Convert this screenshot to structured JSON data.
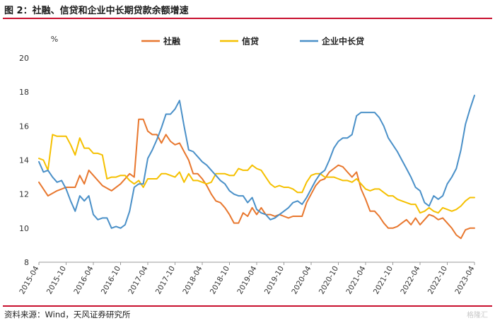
{
  "figure": {
    "title": "图 2：社融、信贷和企业中长期贷款余额增速",
    "source": "资料来源：Wind，天风证券研究所",
    "watermark": "格隆汇"
  },
  "chart_data": {
    "type": "line",
    "unit_label": "%",
    "ylim": [
      8,
      20
    ],
    "yticks": [
      8,
      10,
      12,
      14,
      16,
      18,
      20
    ],
    "x_start": "2015-04",
    "x_end": "2023-04",
    "x_ticks": [
      "2015-04",
      "2015-10",
      "2016-04",
      "2016-10",
      "2017-04",
      "2017-10",
      "2018-04",
      "2018-10",
      "2019-04",
      "2019-10",
      "2020-04",
      "2020-10",
      "2021-04",
      "2021-10",
      "2022-04",
      "2022-10",
      "2023-04"
    ],
    "grid": false,
    "legend_position": "top",
    "series": [
      {
        "name": "社融",
        "color": "#E8772E",
        "points": [
          [
            "2015-04",
            12.7
          ],
          [
            "2015-06",
            11.9
          ],
          [
            "2015-08",
            12.2
          ],
          [
            "2015-10",
            12.4
          ],
          [
            "2015-12",
            12.4
          ],
          [
            "2016-01",
            13.1
          ],
          [
            "2016-02",
            12.6
          ],
          [
            "2016-03",
            13.4
          ],
          [
            "2016-04",
            13.1
          ],
          [
            "2016-06",
            12.5
          ],
          [
            "2016-08",
            12.2
          ],
          [
            "2016-10",
            12.6
          ],
          [
            "2016-12",
            13.2
          ],
          [
            "2017-01",
            13.0
          ],
          [
            "2017-02",
            16.4
          ],
          [
            "2017-03",
            16.4
          ],
          [
            "2017-04",
            15.7
          ],
          [
            "2017-05",
            15.5
          ],
          [
            "2017-06",
            15.5
          ],
          [
            "2017-07",
            15.0
          ],
          [
            "2017-08",
            15.5
          ],
          [
            "2017-09",
            15.1
          ],
          [
            "2017-10",
            14.9
          ],
          [
            "2017-11",
            15.0
          ],
          [
            "2017-12",
            14.5
          ],
          [
            "2018-01",
            14.0
          ],
          [
            "2018-02",
            13.2
          ],
          [
            "2018-03",
            13.2
          ],
          [
            "2018-04",
            12.9
          ],
          [
            "2018-05",
            12.5
          ],
          [
            "2018-06",
            12.0
          ],
          [
            "2018-07",
            11.6
          ],
          [
            "2018-08",
            11.5
          ],
          [
            "2018-09",
            11.2
          ],
          [
            "2018-10",
            10.8
          ],
          [
            "2018-11",
            10.3
          ],
          [
            "2018-12",
            10.3
          ],
          [
            "2019-01",
            10.9
          ],
          [
            "2019-02",
            10.7
          ],
          [
            "2019-03",
            11.2
          ],
          [
            "2019-04",
            10.8
          ],
          [
            "2019-05",
            11.2
          ],
          [
            "2019-06",
            10.8
          ],
          [
            "2019-07",
            10.8
          ],
          [
            "2019-08",
            10.7
          ],
          [
            "2019-09",
            10.8
          ],
          [
            "2019-10",
            10.7
          ],
          [
            "2019-11",
            10.6
          ],
          [
            "2019-12",
            10.7
          ],
          [
            "2020-01",
            10.7
          ],
          [
            "2020-02",
            10.7
          ],
          [
            "2020-03",
            11.5
          ],
          [
            "2020-04",
            12.0
          ],
          [
            "2020-05",
            12.5
          ],
          [
            "2020-06",
            12.8
          ],
          [
            "2020-07",
            12.9
          ],
          [
            "2020-08",
            13.3
          ],
          [
            "2020-09",
            13.5
          ],
          [
            "2020-10",
            13.7
          ],
          [
            "2020-11",
            13.6
          ],
          [
            "2020-12",
            13.3
          ],
          [
            "2021-01",
            13.0
          ],
          [
            "2021-02",
            13.3
          ],
          [
            "2021-03",
            12.3
          ],
          [
            "2021-04",
            11.7
          ],
          [
            "2021-05",
            11.0
          ],
          [
            "2021-06",
            11.0
          ],
          [
            "2021-07",
            10.7
          ],
          [
            "2021-08",
            10.3
          ],
          [
            "2021-09",
            10.0
          ],
          [
            "2021-10",
            10.0
          ],
          [
            "2021-11",
            10.1
          ],
          [
            "2021-12",
            10.3
          ],
          [
            "2022-01",
            10.5
          ],
          [
            "2022-02",
            10.2
          ],
          [
            "2022-03",
            10.6
          ],
          [
            "2022-04",
            10.2
          ],
          [
            "2022-05",
            10.5
          ],
          [
            "2022-06",
            10.8
          ],
          [
            "2022-07",
            10.7
          ],
          [
            "2022-08",
            10.5
          ],
          [
            "2022-09",
            10.6
          ],
          [
            "2022-10",
            10.3
          ],
          [
            "2022-11",
            10.0
          ],
          [
            "2022-12",
            9.6
          ],
          [
            "2023-01",
            9.4
          ],
          [
            "2023-02",
            9.9
          ],
          [
            "2023-03",
            10.0
          ],
          [
            "2023-04",
            10.0
          ]
        ]
      },
      {
        "name": "信贷",
        "color": "#F5C000",
        "points": [
          [
            "2015-04",
            14.1
          ],
          [
            "2015-05",
            14.0
          ],
          [
            "2015-06",
            13.4
          ],
          [
            "2015-07",
            15.5
          ],
          [
            "2015-08",
            15.4
          ],
          [
            "2015-09",
            15.4
          ],
          [
            "2015-10",
            15.4
          ],
          [
            "2015-11",
            14.9
          ],
          [
            "2015-12",
            14.3
          ],
          [
            "2016-01",
            15.3
          ],
          [
            "2016-02",
            14.7
          ],
          [
            "2016-03",
            14.7
          ],
          [
            "2016-04",
            14.4
          ],
          [
            "2016-05",
            14.4
          ],
          [
            "2016-06",
            14.3
          ],
          [
            "2016-07",
            12.9
          ],
          [
            "2016-08",
            13.0
          ],
          [
            "2016-09",
            13.0
          ],
          [
            "2016-10",
            13.1
          ],
          [
            "2016-11",
            13.1
          ],
          [
            "2016-12",
            12.8
          ],
          [
            "2017-01",
            12.6
          ],
          [
            "2017-02",
            12.8
          ],
          [
            "2017-03",
            12.4
          ],
          [
            "2017-04",
            12.9
          ],
          [
            "2017-05",
            12.9
          ],
          [
            "2017-06",
            12.9
          ],
          [
            "2017-07",
            13.2
          ],
          [
            "2017-08",
            13.2
          ],
          [
            "2017-09",
            13.1
          ],
          [
            "2017-10",
            13.0
          ],
          [
            "2017-11",
            13.3
          ],
          [
            "2017-12",
            12.7
          ],
          [
            "2018-01",
            13.2
          ],
          [
            "2018-02",
            12.8
          ],
          [
            "2018-03",
            12.8
          ],
          [
            "2018-04",
            12.7
          ],
          [
            "2018-05",
            12.6
          ],
          [
            "2018-06",
            12.7
          ],
          [
            "2018-07",
            13.2
          ],
          [
            "2018-08",
            13.2
          ],
          [
            "2018-09",
            13.2
          ],
          [
            "2018-10",
            13.1
          ],
          [
            "2018-11",
            13.1
          ],
          [
            "2018-12",
            13.5
          ],
          [
            "2019-01",
            13.4
          ],
          [
            "2019-02",
            13.4
          ],
          [
            "2019-03",
            13.7
          ],
          [
            "2019-04",
            13.5
          ],
          [
            "2019-05",
            13.4
          ],
          [
            "2019-06",
            13.0
          ],
          [
            "2019-07",
            12.6
          ],
          [
            "2019-08",
            12.4
          ],
          [
            "2019-09",
            12.5
          ],
          [
            "2019-10",
            12.4
          ],
          [
            "2019-11",
            12.4
          ],
          [
            "2019-12",
            12.3
          ],
          [
            "2020-01",
            12.1
          ],
          [
            "2020-02",
            12.1
          ],
          [
            "2020-03",
            12.7
          ],
          [
            "2020-04",
            13.1
          ],
          [
            "2020-05",
            13.2
          ],
          [
            "2020-06",
            13.2
          ],
          [
            "2020-07",
            13.0
          ],
          [
            "2020-08",
            13.0
          ],
          [
            "2020-09",
            13.0
          ],
          [
            "2020-10",
            12.9
          ],
          [
            "2020-11",
            12.8
          ],
          [
            "2020-12",
            12.8
          ],
          [
            "2021-01",
            12.7
          ],
          [
            "2021-02",
            12.9
          ],
          [
            "2021-03",
            12.6
          ],
          [
            "2021-04",
            12.3
          ],
          [
            "2021-05",
            12.2
          ],
          [
            "2021-06",
            12.3
          ],
          [
            "2021-07",
            12.3
          ],
          [
            "2021-08",
            12.1
          ],
          [
            "2021-09",
            11.9
          ],
          [
            "2021-10",
            11.9
          ],
          [
            "2021-11",
            11.7
          ],
          [
            "2021-12",
            11.6
          ],
          [
            "2022-01",
            11.5
          ],
          [
            "2022-02",
            11.4
          ],
          [
            "2022-03",
            11.4
          ],
          [
            "2022-04",
            10.9
          ],
          [
            "2022-05",
            11.0
          ],
          [
            "2022-06",
            11.2
          ],
          [
            "2022-07",
            11.0
          ],
          [
            "2022-08",
            10.9
          ],
          [
            "2022-09",
            11.2
          ],
          [
            "2022-10",
            11.1
          ],
          [
            "2022-11",
            11.0
          ],
          [
            "2022-12",
            11.1
          ],
          [
            "2023-01",
            11.3
          ],
          [
            "2023-02",
            11.6
          ],
          [
            "2023-03",
            11.8
          ],
          [
            "2023-04",
            11.8
          ]
        ]
      },
      {
        "name": "企业中长贷",
        "color": "#4A90C8",
        "points": [
          [
            "2015-04",
            13.9
          ],
          [
            "2015-05",
            13.3
          ],
          [
            "2015-06",
            13.4
          ],
          [
            "2015-07",
            13.0
          ],
          [
            "2015-08",
            12.7
          ],
          [
            "2015-09",
            12.8
          ],
          [
            "2015-10",
            12.3
          ],
          [
            "2015-11",
            11.6
          ],
          [
            "2015-12",
            11.0
          ],
          [
            "2016-01",
            11.9
          ],
          [
            "2016-02",
            11.6
          ],
          [
            "2016-03",
            11.9
          ],
          [
            "2016-04",
            10.8
          ],
          [
            "2016-05",
            10.5
          ],
          [
            "2016-06",
            10.6
          ],
          [
            "2016-07",
            10.6
          ],
          [
            "2016-08",
            10.0
          ],
          [
            "2016-09",
            10.1
          ],
          [
            "2016-10",
            10.0
          ],
          [
            "2016-11",
            10.2
          ],
          [
            "2016-12",
            11.0
          ],
          [
            "2017-01",
            12.4
          ],
          [
            "2017-02",
            12.6
          ],
          [
            "2017-03",
            12.6
          ],
          [
            "2017-04",
            14.1
          ],
          [
            "2017-05",
            14.6
          ],
          [
            "2017-06",
            15.2
          ],
          [
            "2017-07",
            15.9
          ],
          [
            "2017-08",
            16.7
          ],
          [
            "2017-09",
            16.7
          ],
          [
            "2017-10",
            17.0
          ],
          [
            "2017-11",
            17.5
          ],
          [
            "2017-12",
            16.0
          ],
          [
            "2018-01",
            14.6
          ],
          [
            "2018-02",
            14.5
          ],
          [
            "2018-03",
            14.2
          ],
          [
            "2018-04",
            13.9
          ],
          [
            "2018-05",
            13.7
          ],
          [
            "2018-06",
            13.4
          ],
          [
            "2018-07",
            13.1
          ],
          [
            "2018-08",
            12.8
          ],
          [
            "2018-09",
            12.6
          ],
          [
            "2018-10",
            12.2
          ],
          [
            "2018-11",
            12.0
          ],
          [
            "2018-12",
            11.9
          ],
          [
            "2019-01",
            11.9
          ],
          [
            "2019-02",
            11.5
          ],
          [
            "2019-03",
            11.8
          ],
          [
            "2019-04",
            11.1
          ],
          [
            "2019-05",
            10.9
          ],
          [
            "2019-06",
            10.8
          ],
          [
            "2019-07",
            10.5
          ],
          [
            "2019-08",
            10.6
          ],
          [
            "2019-09",
            10.8
          ],
          [
            "2019-10",
            11.0
          ],
          [
            "2019-11",
            11.2
          ],
          [
            "2019-12",
            11.5
          ],
          [
            "2020-01",
            11.6
          ],
          [
            "2020-02",
            11.4
          ],
          [
            "2020-03",
            11.8
          ],
          [
            "2020-04",
            12.3
          ],
          [
            "2020-05",
            12.8
          ],
          [
            "2020-06",
            13.2
          ],
          [
            "2020-07",
            13.4
          ],
          [
            "2020-08",
            14.0
          ],
          [
            "2020-09",
            14.7
          ],
          [
            "2020-10",
            15.1
          ],
          [
            "2020-11",
            15.3
          ],
          [
            "2020-12",
            15.3
          ],
          [
            "2021-01",
            15.5
          ],
          [
            "2021-02",
            16.6
          ],
          [
            "2021-03",
            16.8
          ],
          [
            "2021-04",
            16.8
          ],
          [
            "2021-05",
            16.8
          ],
          [
            "2021-06",
            16.8
          ],
          [
            "2021-07",
            16.5
          ],
          [
            "2021-08",
            16.0
          ],
          [
            "2021-09",
            15.3
          ],
          [
            "2021-10",
            14.9
          ],
          [
            "2021-11",
            14.5
          ],
          [
            "2021-12",
            14.0
          ],
          [
            "2022-01",
            13.5
          ],
          [
            "2022-02",
            13.0
          ],
          [
            "2022-03",
            12.4
          ],
          [
            "2022-04",
            12.2
          ],
          [
            "2022-05",
            11.5
          ],
          [
            "2022-06",
            11.3
          ],
          [
            "2022-07",
            11.9
          ],
          [
            "2022-08",
            11.7
          ],
          [
            "2022-09",
            11.9
          ],
          [
            "2022-10",
            12.6
          ],
          [
            "2022-11",
            13.0
          ],
          [
            "2022-12",
            13.5
          ],
          [
            "2023-01",
            14.6
          ],
          [
            "2023-02",
            16.1
          ],
          [
            "2023-03",
            17.0
          ],
          [
            "2023-04",
            17.8
          ]
        ]
      }
    ]
  }
}
